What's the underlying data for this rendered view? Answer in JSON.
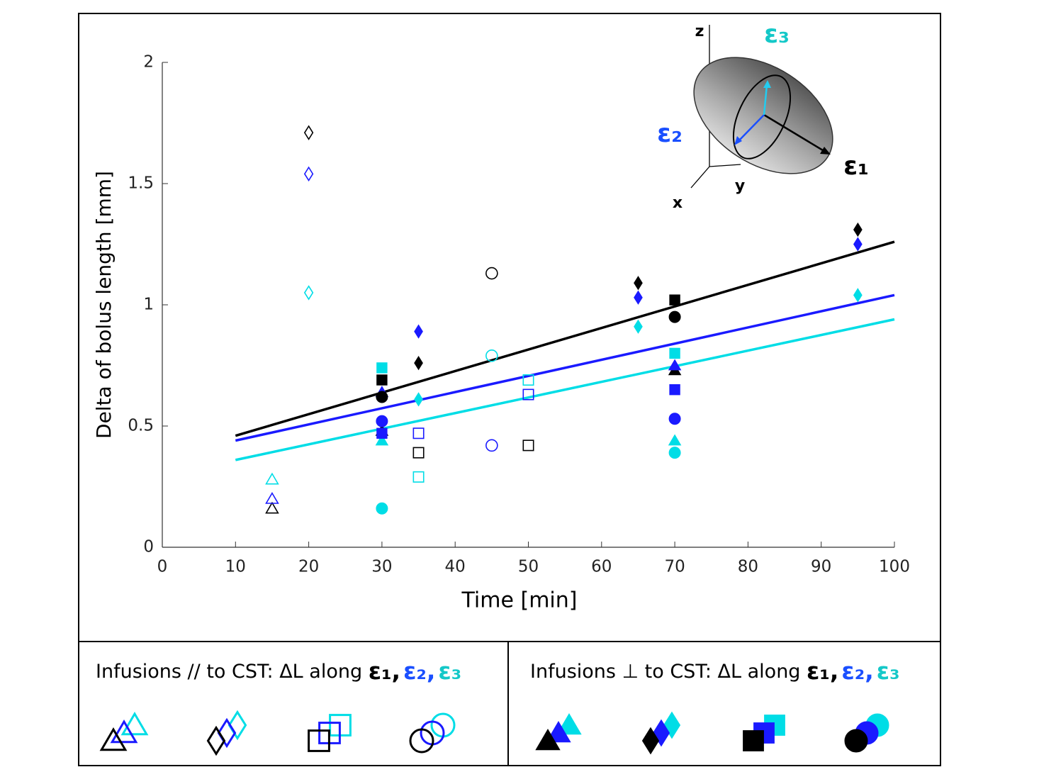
{
  "chart_data": {
    "type": "scatter",
    "xlabel": "Time [min]",
    "ylabel": "Delta of bolus length [mm]",
    "xlim": [
      0,
      100
    ],
    "xticks": [
      0,
      10,
      20,
      30,
      40,
      50,
      60,
      70,
      80,
      90,
      100
    ],
    "ylim": [
      0,
      2
    ],
    "yticks": [
      0,
      0.5,
      1,
      1.5,
      2
    ],
    "series": [
      {
        "marker": "triangle",
        "filled": false,
        "color": "#000000",
        "x": [
          15
        ],
        "values": [
          0.16
        ]
      },
      {
        "marker": "triangle",
        "filled": false,
        "color": "#1a1aff",
        "x": [
          15
        ],
        "values": [
          0.2
        ]
      },
      {
        "marker": "triangle",
        "filled": false,
        "color": "#00dde6",
        "x": [
          15
        ],
        "values": [
          0.28
        ]
      },
      {
        "marker": "diamond",
        "filled": false,
        "color": "#000000",
        "x": [
          20
        ],
        "values": [
          1.71
        ]
      },
      {
        "marker": "diamond",
        "filled": false,
        "color": "#1a1aff",
        "x": [
          20
        ],
        "values": [
          1.54
        ]
      },
      {
        "marker": "diamond",
        "filled": false,
        "color": "#00dde6",
        "x": [
          20
        ],
        "values": [
          1.05
        ]
      },
      {
        "marker": "square",
        "filled": false,
        "color": "#000000",
        "x": [
          35,
          50
        ],
        "values": [
          0.39,
          0.42
        ]
      },
      {
        "marker": "square",
        "filled": false,
        "color": "#1a1aff",
        "x": [
          35,
          50
        ],
        "values": [
          0.47,
          0.63
        ]
      },
      {
        "marker": "square",
        "filled": false,
        "color": "#00dde6",
        "x": [
          35,
          50
        ],
        "values": [
          0.29,
          0.69
        ]
      },
      {
        "marker": "circle",
        "filled": false,
        "color": "#000000",
        "x": [
          45
        ],
        "values": [
          1.13
        ]
      },
      {
        "marker": "circle",
        "filled": false,
        "color": "#1a1aff",
        "x": [
          45
        ],
        "values": [
          0.42
        ]
      },
      {
        "marker": "circle",
        "filled": false,
        "color": "#00dde6",
        "x": [
          45
        ],
        "values": [
          0.79
        ]
      },
      {
        "marker": "triangle",
        "filled": true,
        "color": "#000000",
        "x": [
          30,
          70
        ],
        "values": [
          0.48,
          0.73
        ]
      },
      {
        "marker": "triangle",
        "filled": true,
        "color": "#1a1aff",
        "x": [
          30,
          70
        ],
        "values": [
          0.64,
          0.75
        ]
      },
      {
        "marker": "triangle",
        "filled": true,
        "color": "#00dde6",
        "x": [
          30,
          70
        ],
        "values": [
          0.44,
          0.44
        ]
      },
      {
        "marker": "diamond",
        "filled": true,
        "color": "#000000",
        "x": [
          35,
          65,
          95
        ],
        "values": [
          0.76,
          1.09,
          1.31
        ]
      },
      {
        "marker": "diamond",
        "filled": true,
        "color": "#1a1aff",
        "x": [
          35,
          65,
          95
        ],
        "values": [
          0.89,
          1.03,
          1.25
        ]
      },
      {
        "marker": "diamond",
        "filled": true,
        "color": "#00dde6",
        "x": [
          35,
          65,
          95
        ],
        "values": [
          0.61,
          0.91,
          1.04
        ]
      },
      {
        "marker": "square",
        "filled": true,
        "color": "#000000",
        "x": [
          30,
          70
        ],
        "values": [
          0.69,
          1.02
        ]
      },
      {
        "marker": "square",
        "filled": true,
        "color": "#1a1aff",
        "x": [
          30,
          70
        ],
        "values": [
          0.47,
          0.65
        ]
      },
      {
        "marker": "square",
        "filled": true,
        "color": "#00dde6",
        "x": [
          30,
          70
        ],
        "values": [
          0.74,
          0.8
        ]
      },
      {
        "marker": "circle",
        "filled": true,
        "color": "#000000",
        "x": [
          30,
          70
        ],
        "values": [
          0.62,
          0.95
        ]
      },
      {
        "marker": "circle",
        "filled": true,
        "color": "#1a1aff",
        "x": [
          30,
          70
        ],
        "values": [
          0.52,
          0.53
        ]
      },
      {
        "marker": "circle",
        "filled": true,
        "color": "#00dde6",
        "x": [
          30,
          70
        ],
        "values": [
          0.16,
          0.39
        ]
      }
    ],
    "fits": [
      {
        "color": "#000000",
        "x": [
          10,
          100
        ],
        "values": [
          0.46,
          1.26
        ]
      },
      {
        "color": "#1a1aff",
        "x": [
          10,
          100
        ],
        "values": [
          0.44,
          1.04
        ]
      },
      {
        "color": "#00dde6",
        "x": [
          10,
          100
        ],
        "values": [
          0.36,
          0.94
        ]
      }
    ],
    "diagram": {
      "axes": [
        "z",
        "x",
        "y"
      ],
      "eigen": [
        "ε₁",
        "ε₂",
        "ε₃"
      ]
    },
    "legend": [
      {
        "text": "Infusions // to CST: ΔL along",
        "symbols": [
          "ε₁,",
          "ε₂,",
          "ε₃"
        ],
        "filled": false
      },
      {
        "text": "Infusions ⊥ to CST: ΔL along",
        "symbols": [
          "ε₁,",
          "ε₂,",
          "ε₃"
        ],
        "filled": true
      }
    ]
  }
}
